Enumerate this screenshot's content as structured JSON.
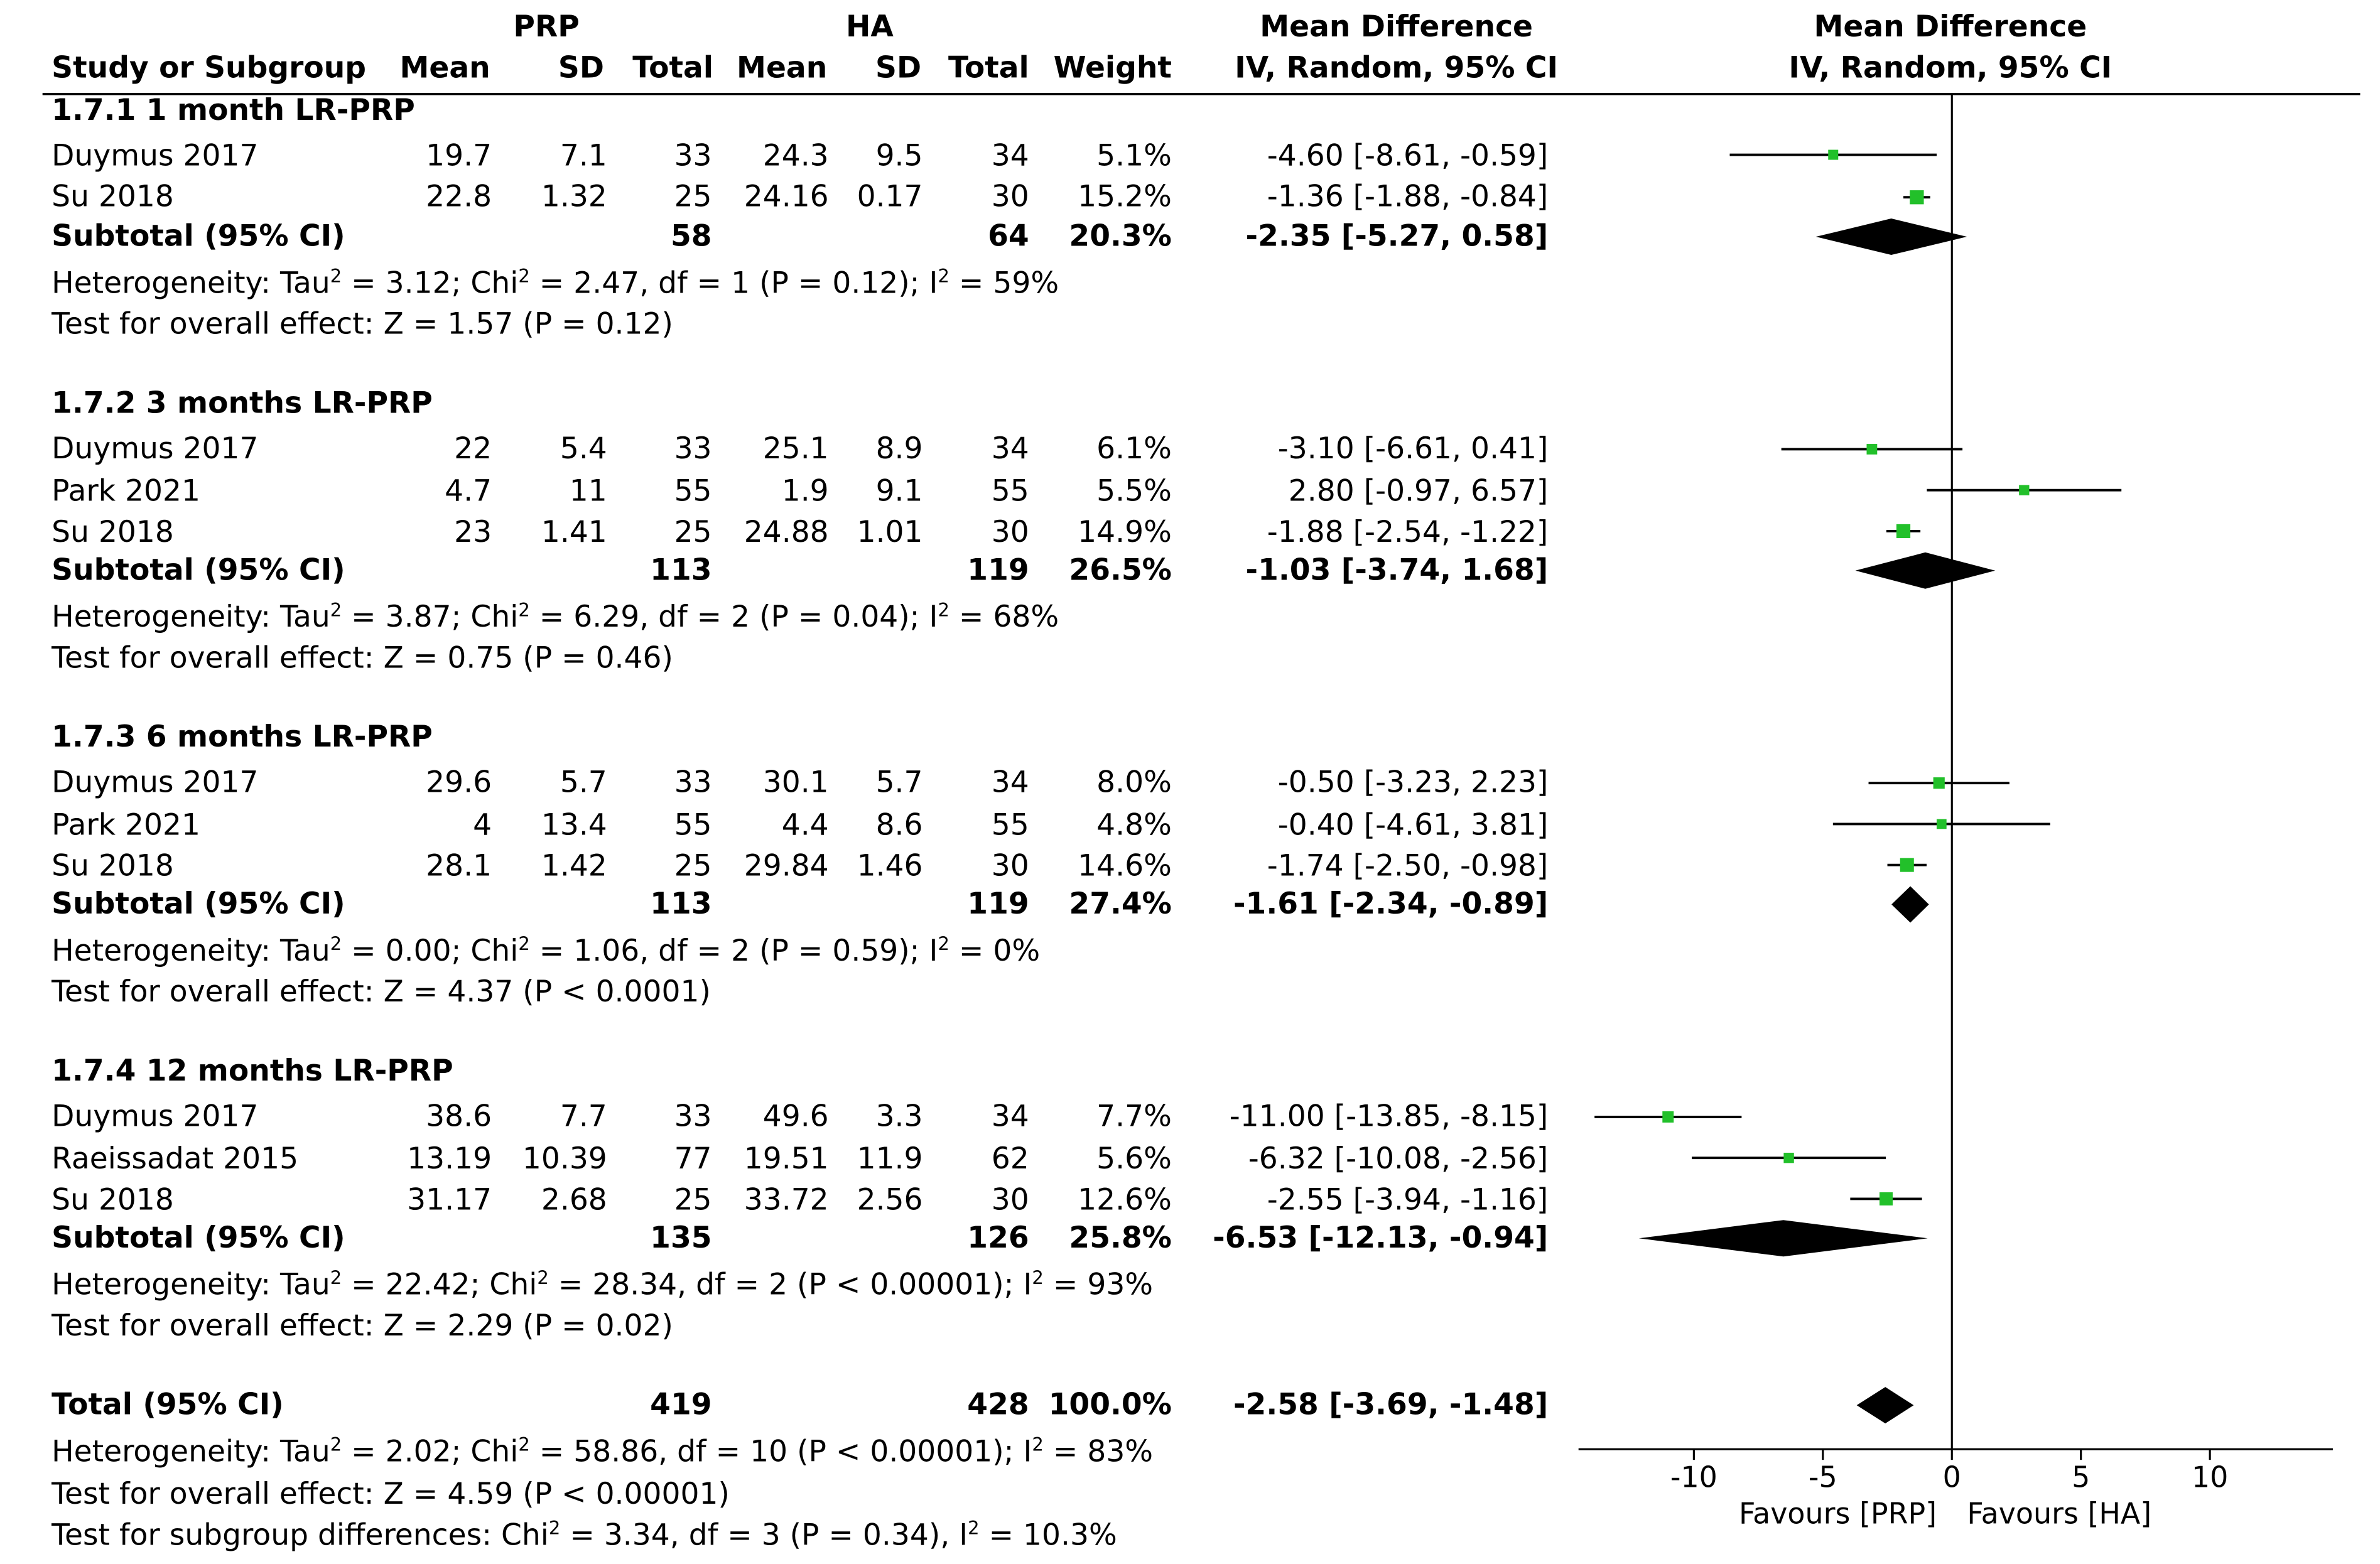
{
  "header": {
    "group1": "PRP",
    "group2": "HA",
    "effect_col_top": "Mean Difference",
    "effect_col_bottom": "IV, Random, 95% CI",
    "plot_col_top": "Mean Difference",
    "plot_col_bottom": "IV, Random, 95% CI",
    "col_study": "Study or Subgroup",
    "col_mean1": "Mean",
    "col_sd1": "SD",
    "col_total1": "Total",
    "col_mean2": "Mean",
    "col_sd2": "SD",
    "col_total2": "Total",
    "col_weight": "Weight"
  },
  "subgroups": [
    {
      "title": "1.7.1 1 month LR-PRP",
      "studies": [
        {
          "name": "Duymus 2017",
          "m1": "19.7",
          "sd1": "7.1",
          "n1": "33",
          "m2": "24.3",
          "sd2": "9.5",
          "n2": "34",
          "w": "5.1%",
          "ci": "-4.60 [-8.61, -0.59]"
        },
        {
          "name": "Su 2018",
          "m1": "22.8",
          "sd1": "1.32",
          "n1": "25",
          "m2": "24.16",
          "sd2": "0.17",
          "n2": "30",
          "w": "15.2%",
          "ci": "-1.36 [-1.88, -0.84]"
        }
      ],
      "subtotal": {
        "label": "Subtotal (95% CI)",
        "n1": "58",
        "n2": "64",
        "w": "20.3%",
        "ci": "-2.35 [-5.27, 0.58]"
      },
      "het_prefix": "Heterogeneity: Tau",
      "het_mid": " = 3.12; Chi",
      "het_mid2": " = 2.47, df = 1 (P = 0.12); I",
      "het_end": " = 59%",
      "overall": "Test for overall effect: Z = 1.57 (P = 0.12)"
    },
    {
      "title": "1.7.2 3 months LR-PRP",
      "studies": [
        {
          "name": "Duymus 2017",
          "m1": "22",
          "sd1": "5.4",
          "n1": "33",
          "m2": "25.1",
          "sd2": "8.9",
          "n2": "34",
          "w": "6.1%",
          "ci": "-3.10 [-6.61, 0.41]"
        },
        {
          "name": "Park 2021",
          "m1": "4.7",
          "sd1": "11",
          "n1": "55",
          "m2": "1.9",
          "sd2": "9.1",
          "n2": "55",
          "w": "5.5%",
          "ci": "2.80 [-0.97, 6.57]"
        },
        {
          "name": "Su 2018",
          "m1": "23",
          "sd1": "1.41",
          "n1": "25",
          "m2": "24.88",
          "sd2": "1.01",
          "n2": "30",
          "w": "14.9%",
          "ci": "-1.88 [-2.54, -1.22]"
        }
      ],
      "subtotal": {
        "label": "Subtotal (95% CI)",
        "n1": "113",
        "n2": "119",
        "w": "26.5%",
        "ci": "-1.03 [-3.74, 1.68]"
      },
      "het_prefix": "Heterogeneity: Tau",
      "het_mid": " = 3.87; Chi",
      "het_mid2": " = 6.29, df = 2 (P = 0.04); I",
      "het_end": " = 68%",
      "overall": "Test for overall effect: Z = 0.75 (P = 0.46)"
    },
    {
      "title": "1.7.3 6 months LR-PRP",
      "studies": [
        {
          "name": "Duymus 2017",
          "m1": "29.6",
          "sd1": "5.7",
          "n1": "33",
          "m2": "30.1",
          "sd2": "5.7",
          "n2": "34",
          "w": "8.0%",
          "ci": "-0.50 [-3.23, 2.23]"
        },
        {
          "name": "Park 2021",
          "m1": "4",
          "sd1": "13.4",
          "n1": "55",
          "m2": "4.4",
          "sd2": "8.6",
          "n2": "55",
          "w": "4.8%",
          "ci": "-0.40 [-4.61, 3.81]"
        },
        {
          "name": "Su 2018",
          "m1": "28.1",
          "sd1": "1.42",
          "n1": "25",
          "m2": "29.84",
          "sd2": "1.46",
          "n2": "30",
          "w": "14.6%",
          "ci": "-1.74 [-2.50, -0.98]"
        }
      ],
      "subtotal": {
        "label": "Subtotal (95% CI)",
        "n1": "113",
        "n2": "119",
        "w": "27.4%",
        "ci": "-1.61 [-2.34, -0.89]"
      },
      "het_prefix": "Heterogeneity: Tau",
      "het_mid": " = 0.00; Chi",
      "het_mid2": " = 1.06, df = 2 (P = 0.59); I",
      "het_end": " = 0%",
      "overall": "Test for overall effect: Z = 4.37 (P < 0.0001)"
    },
    {
      "title": "1.7.4 12 months LR-PRP",
      "studies": [
        {
          "name": "Duymus 2017",
          "m1": "38.6",
          "sd1": "7.7",
          "n1": "33",
          "m2": "49.6",
          "sd2": "3.3",
          "n2": "34",
          "w": "7.7%",
          "ci": "-11.00 [-13.85, -8.15]"
        },
        {
          "name": "Raeissadat 2015",
          "m1": "13.19",
          "sd1": "10.39",
          "n1": "77",
          "m2": "19.51",
          "sd2": "11.9",
          "n2": "62",
          "w": "5.6%",
          "ci": "-6.32 [-10.08, -2.56]"
        },
        {
          "name": "Su 2018",
          "m1": "31.17",
          "sd1": "2.68",
          "n1": "25",
          "m2": "33.72",
          "sd2": "2.56",
          "n2": "30",
          "w": "12.6%",
          "ci": "-2.55 [-3.94, -1.16]"
        }
      ],
      "subtotal": {
        "label": "Subtotal (95% CI)",
        "n1": "135",
        "n2": "126",
        "w": "25.8%",
        "ci": "-6.53 [-12.13, -0.94]"
      },
      "het_prefix": "Heterogeneity: Tau",
      "het_mid": " = 22.42; Chi",
      "het_mid2": " = 28.34, df = 2 (P < 0.00001); I",
      "het_end": " = 93%",
      "overall": "Test for overall effect: Z = 2.29 (P = 0.02)"
    }
  ],
  "total": {
    "label": "Total (95% CI)",
    "n1": "419",
    "n2": "428",
    "w": "100.0%",
    "ci": "-2.58 [-3.69, -1.48]",
    "het_prefix": "Heterogeneity: Tau",
    "het_mid": " = 2.02; Chi",
    "het_mid2": " = 58.86, df = 10 (P < 0.00001); I",
    "het_end": " = 83%",
    "overall": "Test for overall effect: Z = 4.59 (P < 0.00001)",
    "subgroup_diff_prefix": "Test for subgroup differences: Chi",
    "subgroup_diff_mid": " = 3.34, df = 3 (P = 0.34), I",
    "subgroup_diff_end": " = 10.3%"
  },
  "superscript": "2",
  "chart_data": {
    "type": "forest",
    "title": "Mean Difference IV, Random, 95% CI",
    "xlabel_left": "Favours [PRP]",
    "xlabel_right": "Favours [HA]",
    "xlim": [
      -15,
      15
    ],
    "ticks": [
      -10,
      -5,
      0,
      5,
      10
    ],
    "tick_labels": [
      "-10",
      "-5",
      "0",
      "5",
      "10"
    ],
    "null_line": 0,
    "marker_color": "#22c02a",
    "diamond_color": "#000000",
    "rows": [
      {
        "kind": "study",
        "subgroup": 0,
        "est": -4.6,
        "lo": -8.61,
        "hi": -0.59,
        "weight": 5.1
      },
      {
        "kind": "study",
        "subgroup": 0,
        "est": -1.36,
        "lo": -1.88,
        "hi": -0.84,
        "weight": 15.2
      },
      {
        "kind": "diamond",
        "subgroup": 0,
        "est": -2.35,
        "lo": -5.27,
        "hi": 0.58
      },
      {
        "kind": "study",
        "subgroup": 1,
        "est": -3.1,
        "lo": -6.61,
        "hi": 0.41,
        "weight": 6.1
      },
      {
        "kind": "study",
        "subgroup": 1,
        "est": 2.8,
        "lo": -0.97,
        "hi": 6.57,
        "weight": 5.5
      },
      {
        "kind": "study",
        "subgroup": 1,
        "est": -1.88,
        "lo": -2.54,
        "hi": -1.22,
        "weight": 14.9
      },
      {
        "kind": "diamond",
        "subgroup": 1,
        "est": -1.03,
        "lo": -3.74,
        "hi": 1.68
      },
      {
        "kind": "study",
        "subgroup": 2,
        "est": -0.5,
        "lo": -3.23,
        "hi": 2.23,
        "weight": 8.0
      },
      {
        "kind": "study",
        "subgroup": 2,
        "est": -0.4,
        "lo": -4.61,
        "hi": 3.81,
        "weight": 4.8
      },
      {
        "kind": "study",
        "subgroup": 2,
        "est": -1.74,
        "lo": -2.5,
        "hi": -0.98,
        "weight": 14.6
      },
      {
        "kind": "diamond",
        "subgroup": 2,
        "est": -1.61,
        "lo": -2.34,
        "hi": -0.89
      },
      {
        "kind": "study",
        "subgroup": 3,
        "est": -11.0,
        "lo": -13.85,
        "hi": -8.15,
        "weight": 7.7
      },
      {
        "kind": "study",
        "subgroup": 3,
        "est": -6.32,
        "lo": -10.08,
        "hi": -2.56,
        "weight": 5.6
      },
      {
        "kind": "study",
        "subgroup": 3,
        "est": -2.55,
        "lo": -3.94,
        "hi": -1.16,
        "weight": 12.6
      },
      {
        "kind": "diamond",
        "subgroup": 3,
        "est": -6.53,
        "lo": -12.13,
        "hi": -0.94
      },
      {
        "kind": "diamond",
        "subgroup": "total",
        "est": -2.58,
        "lo": -3.69,
        "hi": -1.48
      }
    ]
  }
}
